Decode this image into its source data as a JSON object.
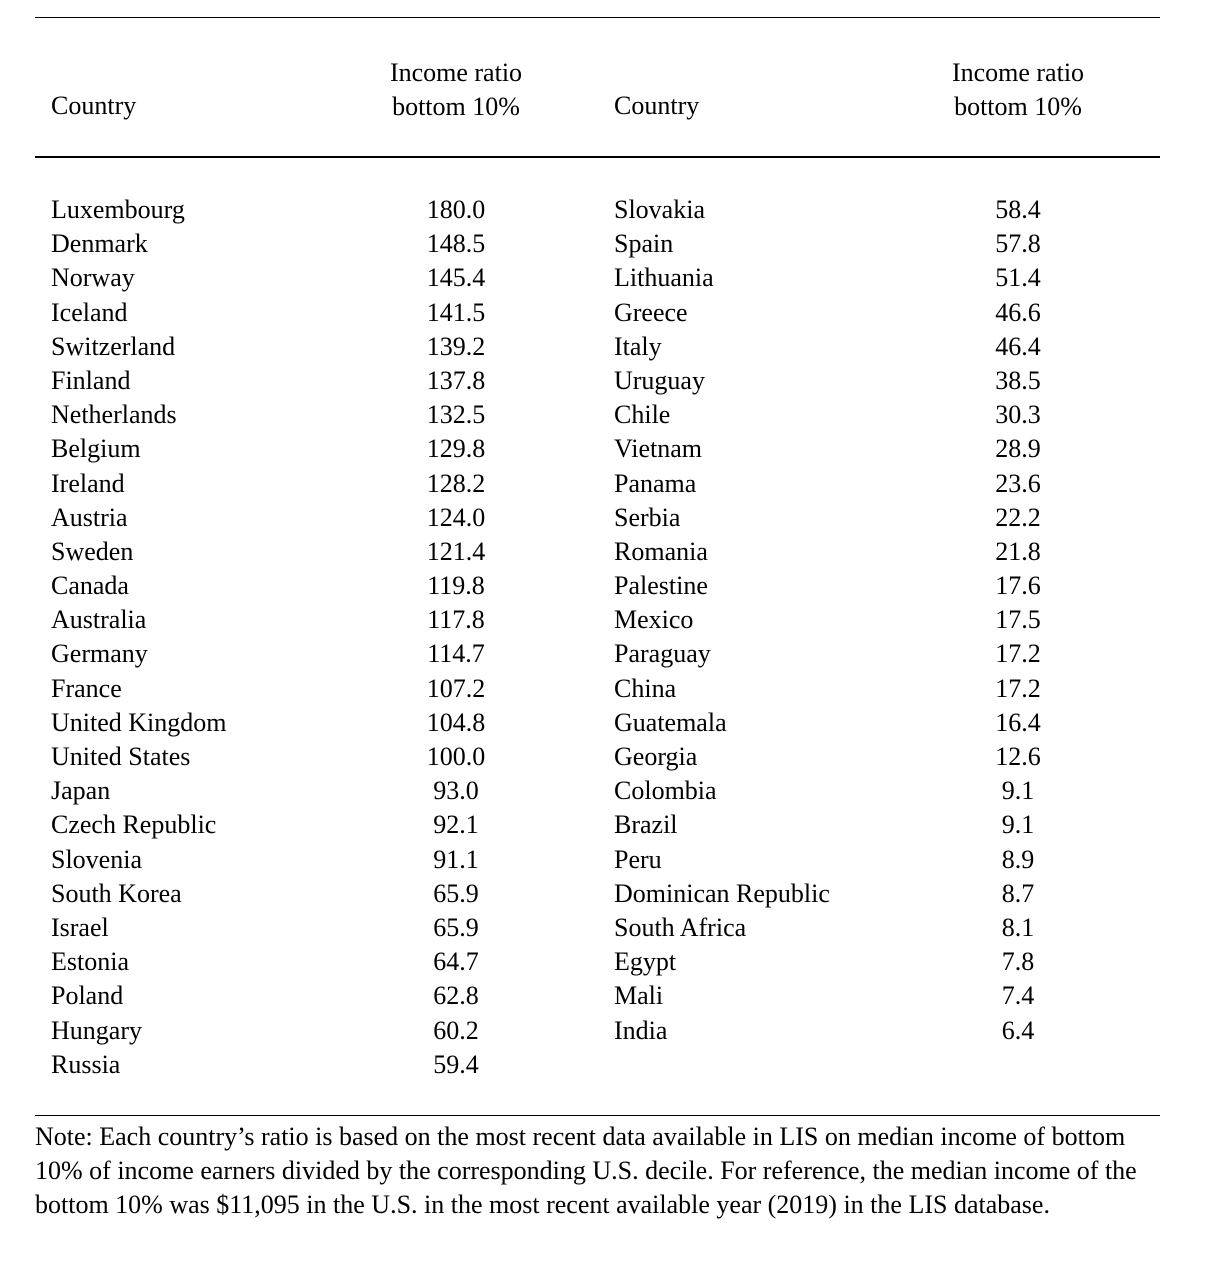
{
  "header": {
    "country_label": "Country",
    "ratio_label_line1": "Income ratio",
    "ratio_label_line2": "bottom 10%"
  },
  "left_rows": [
    {
      "country": "Luxembourg",
      "value": "180.0"
    },
    {
      "country": "Denmark",
      "value": "148.5"
    },
    {
      "country": "Norway",
      "value": "145.4"
    },
    {
      "country": "Iceland",
      "value": "141.5"
    },
    {
      "country": "Switzerland",
      "value": "139.2"
    },
    {
      "country": "Finland",
      "value": "137.8"
    },
    {
      "country": "Netherlands",
      "value": "132.5"
    },
    {
      "country": "Belgium",
      "value": "129.8"
    },
    {
      "country": "Ireland",
      "value": "128.2"
    },
    {
      "country": "Austria",
      "value": "124.0"
    },
    {
      "country": "Sweden",
      "value": "121.4"
    },
    {
      "country": "Canada",
      "value": "119.8"
    },
    {
      "country": "Australia",
      "value": "117.8"
    },
    {
      "country": "Germany",
      "value": "114.7"
    },
    {
      "country": "France",
      "value": "107.2"
    },
    {
      "country": "United Kingdom",
      "value": "104.8"
    },
    {
      "country": "United States",
      "value": "100.0"
    },
    {
      "country": "Japan",
      "value": "93.0"
    },
    {
      "country": "Czech Republic",
      "value": "92.1"
    },
    {
      "country": "Slovenia",
      "value": "91.1"
    },
    {
      "country": "South Korea",
      "value": "65.9"
    },
    {
      "country": "Israel",
      "value": "65.9"
    },
    {
      "country": "Estonia",
      "value": "64.7"
    },
    {
      "country": "Poland",
      "value": "62.8"
    },
    {
      "country": "Hungary",
      "value": "60.2"
    },
    {
      "country": "Russia",
      "value": "59.4"
    }
  ],
  "right_rows": [
    {
      "country": "Slovakia",
      "value": "58.4"
    },
    {
      "country": "Spain",
      "value": "57.8"
    },
    {
      "country": "Lithuania",
      "value": "51.4"
    },
    {
      "country": "Greece",
      "value": "46.6"
    },
    {
      "country": "Italy",
      "value": "46.4"
    },
    {
      "country": "Uruguay",
      "value": "38.5"
    },
    {
      "country": "Chile",
      "value": "30.3"
    },
    {
      "country": "Vietnam",
      "value": "28.9"
    },
    {
      "country": "Panama",
      "value": "23.6"
    },
    {
      "country": "Serbia",
      "value": "22.2"
    },
    {
      "country": "Romania",
      "value": "21.8"
    },
    {
      "country": "Palestine",
      "value": "17.6"
    },
    {
      "country": "Mexico",
      "value": "17.5"
    },
    {
      "country": "Paraguay",
      "value": "17.2"
    },
    {
      "country": "China",
      "value": "17.2"
    },
    {
      "country": "Guatemala",
      "value": "16.4"
    },
    {
      "country": "Georgia",
      "value": "12.6"
    },
    {
      "country": "Colombia",
      "value": "9.1"
    },
    {
      "country": "Brazil",
      "value": "9.1"
    },
    {
      "country": "Peru",
      "value": "8.9"
    },
    {
      "country": "Dominican Republic",
      "value": "8.7"
    },
    {
      "country": "South Africa",
      "value": "8.1"
    },
    {
      "country": "Egypt",
      "value": "7.8"
    },
    {
      "country": "Mali",
      "value": "7.4"
    },
    {
      "country": "India",
      "value": "6.4"
    }
  ],
  "note": "Note: Each country’s ratio is based on the most recent data available in LIS on median income of bottom 10% of income earners divided by the corresponding U.S. decile. For reference, the median income of the bottom 10% was $11,095 in the U.S. in the most recent available year (2019) in the LIS database."
}
